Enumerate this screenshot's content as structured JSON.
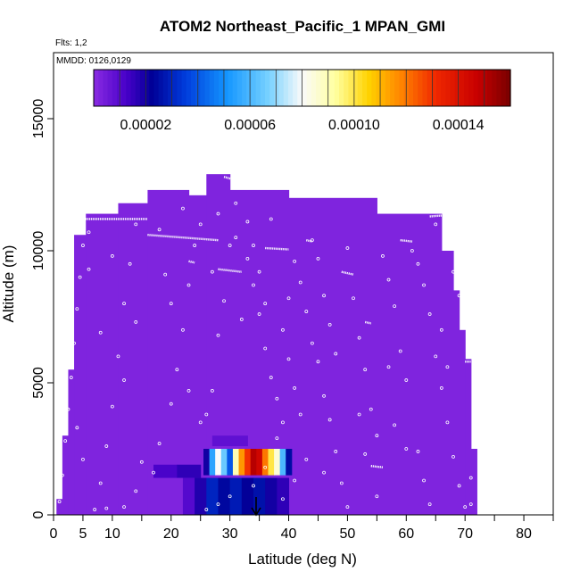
{
  "chart_data": {
    "type": "heatmap",
    "title": "ATOM2 Northeast_Pacific_1 MPAN_GMI",
    "flights_label": "Flts: 1,2",
    "date_label": "MMDD: 0126,0129",
    "xlabel": "Latitude (deg N)",
    "ylabel": "Altitude (m)",
    "xlim": [
      0,
      85
    ],
    "ylim": [
      0,
      17500
    ],
    "x_ticks": [
      0,
      5,
      10,
      20,
      30,
      40,
      50,
      60,
      70,
      80
    ],
    "y_ticks": [
      0,
      5000,
      10000,
      15000
    ],
    "colorbar": {
      "range": [
        0,
        0.00016
      ],
      "ticks": [
        "0.00002",
        "0.00006",
        "0.00010",
        "0.00014"
      ],
      "tick_values": [
        2e-05,
        6e-05,
        0.0001,
        0.00014
      ]
    },
    "background_value": 2e-06,
    "curtain_columns": [
      [
        0.5,
        1.5,
        0,
        600
      ],
      [
        1.5,
        2.5,
        0,
        3000
      ],
      [
        2.5,
        3.5,
        0,
        5500
      ],
      [
        3.5,
        5.5,
        0,
        10600
      ],
      [
        5.5,
        11,
        0,
        11400
      ],
      [
        11,
        16,
        0,
        11800
      ],
      [
        16,
        23,
        0,
        12300
      ],
      [
        23,
        26,
        0,
        12100
      ],
      [
        26,
        30,
        0,
        12900
      ],
      [
        30,
        40,
        0,
        12300
      ],
      [
        40,
        55,
        0,
        12000
      ],
      [
        55,
        66,
        0,
        11400
      ],
      [
        66,
        68,
        0,
        10000
      ],
      [
        68,
        69,
        0,
        8500
      ],
      [
        69,
        70,
        0,
        7000
      ],
      [
        70,
        71,
        0,
        5900
      ],
      [
        71,
        72,
        0,
        2500
      ]
    ],
    "enhanced_cells": [
      {
        "lat": [
          17,
          21
        ],
        "alt": [
          1400,
          1900
        ],
        "value": 1.2e-05
      },
      {
        "lat": [
          21,
          25
        ],
        "alt": [
          1400,
          1900
        ],
        "value": 1.6e-05
      },
      {
        "lat": [
          22,
          24
        ],
        "alt": [
          0,
          1400
        ],
        "value": 1e-05
      },
      {
        "lat": [
          24,
          26
        ],
        "alt": [
          0,
          1400
        ],
        "value": 1.8e-05
      },
      {
        "lat": [
          26,
          28
        ],
        "alt": [
          0,
          1400
        ],
        "value": 3e-05
      },
      {
        "lat": [
          28,
          30
        ],
        "alt": [
          0,
          1400
        ],
        "value": 2.4e-05
      },
      {
        "lat": [
          30,
          32
        ],
        "alt": [
          0,
          1400
        ],
        "value": 2.8e-05
      },
      {
        "lat": [
          32,
          34
        ],
        "alt": [
          0,
          1400
        ],
        "value": 2.2e-05
      },
      {
        "lat": [
          34,
          36
        ],
        "alt": [
          0,
          1400
        ],
        "value": 2.6e-05
      },
      {
        "lat": [
          36,
          38
        ],
        "alt": [
          0,
          1400
        ],
        "value": 2e-05
      },
      {
        "lat": [
          38,
          40
        ],
        "alt": [
          0,
          1400
        ],
        "value": 1.6e-05
      },
      {
        "lat": [
          27,
          33
        ],
        "alt": [
          2600,
          3000
        ],
        "value": 8e-06
      },
      {
        "lat": [
          25.5,
          26.5
        ],
        "alt": [
          1500,
          2500
        ],
        "value": 2e-05
      },
      {
        "lat": [
          26.5,
          27.5
        ],
        "alt": [
          1500,
          2500
        ],
        "value": 5.5e-05
      },
      {
        "lat": [
          27.5,
          28.5
        ],
        "alt": [
          1500,
          2500
        ],
        "value": 8e-05
      },
      {
        "lat": [
          28.5,
          29.5
        ],
        "alt": [
          1500,
          2500
        ],
        "value": 6.5e-05
      },
      {
        "lat": [
          29.5,
          30.5
        ],
        "alt": [
          1500,
          2500
        ],
        "value": 4e-05
      },
      {
        "lat": [
          30.5,
          31.5
        ],
        "alt": [
          1500,
          2500
        ],
        "value": 9e-05
      },
      {
        "lat": [
          31.5,
          32.5
        ],
        "alt": [
          1500,
          2500
        ],
        "value": 0.000115
      },
      {
        "lat": [
          32.5,
          33.5
        ],
        "alt": [
          1500,
          2500
        ],
        "value": 0.00013
      },
      {
        "lat": [
          33.5,
          34.5
        ],
        "alt": [
          1500,
          2500
        ],
        "value": 0.00015
      },
      {
        "lat": [
          34.5,
          35.5
        ],
        "alt": [
          1500,
          2500
        ],
        "value": 0.000145
      },
      {
        "lat": [
          35.5,
          36.5
        ],
        "alt": [
          1500,
          2500
        ],
        "value": 0.00012
      },
      {
        "lat": [
          36.5,
          37.5
        ],
        "alt": [
          1500,
          2500
        ],
        "value": 0.0001
      },
      {
        "lat": [
          37.5,
          38.5
        ],
        "alt": [
          1500,
          2500
        ],
        "value": 8.5e-05
      },
      {
        "lat": [
          38.5,
          39.5
        ],
        "alt": [
          1500,
          2500
        ],
        "value": 6e-05
      },
      {
        "lat": [
          39.5,
          40.5
        ],
        "alt": [
          1500,
          2500
        ],
        "value": 2.5e-05
      }
    ],
    "flight_track_segments": [
      [
        [
          3,
          11200
        ],
        [
          16,
          11200
        ]
      ],
      [
        [
          16,
          10600
        ],
        [
          28,
          10400
        ]
      ],
      [
        [
          29,
          12800
        ],
        [
          32,
          12600
        ]
      ],
      [
        [
          10,
          12200
        ],
        [
          12,
          12150
        ]
      ],
      [
        [
          17,
          12500
        ],
        [
          19,
          12500
        ]
      ],
      [
        [
          23,
          9600
        ],
        [
          24,
          9550
        ]
      ],
      [
        [
          28,
          9300
        ],
        [
          32,
          9200
        ]
      ],
      [
        [
          36,
          10100
        ],
        [
          40,
          10050
        ]
      ],
      [
        [
          43,
          10400
        ],
        [
          44,
          10350
        ]
      ],
      [
        [
          49,
          9200
        ],
        [
          51,
          9100
        ]
      ],
      [
        [
          53,
          7300
        ],
        [
          54,
          7250
        ]
      ],
      [
        [
          59,
          10400
        ],
        [
          61,
          10350
        ]
      ],
      [
        [
          64,
          11300
        ],
        [
          67,
          11350
        ]
      ],
      [
        [
          70,
          5800
        ],
        [
          71,
          5800
        ]
      ],
      [
        [
          54,
          1850
        ],
        [
          56,
          1800
        ]
      ]
    ],
    "observation_points": [
      [
        1,
        500
      ],
      [
        1.5,
        1500
      ],
      [
        2,
        2800
      ],
      [
        2.5,
        4000
      ],
      [
        3,
        5200
      ],
      [
        3.5,
        6500
      ],
      [
        4,
        7800
      ],
      [
        4.5,
        9000
      ],
      [
        5,
        10200
      ],
      [
        6,
        10700
      ],
      [
        7,
        200
      ],
      [
        8,
        1200
      ],
      [
        9,
        2600
      ],
      [
        10,
        4100
      ],
      [
        11,
        6000
      ],
      [
        12,
        8000
      ],
      [
        13,
        9500
      ],
      [
        14,
        11000
      ],
      [
        15,
        12100
      ],
      [
        16,
        12400
      ],
      [
        9,
        250
      ],
      [
        12,
        300
      ],
      [
        14,
        900
      ],
      [
        17,
        1600
      ],
      [
        18,
        2700
      ],
      [
        20,
        4200
      ],
      [
        21,
        5500
      ],
      [
        22,
        7000
      ],
      [
        23,
        8700
      ],
      [
        24,
        10200
      ],
      [
        25,
        11000
      ],
      [
        26,
        3800
      ],
      [
        27,
        4700
      ],
      [
        28,
        6800
      ],
      [
        29,
        8100
      ],
      [
        30,
        10200
      ],
      [
        31,
        11800
      ],
      [
        32,
        7400
      ],
      [
        33,
        9700
      ],
      [
        34,
        8700
      ],
      [
        35,
        7600
      ],
      [
        36,
        6300
      ],
      [
        37,
        5200
      ],
      [
        38,
        4400
      ],
      [
        39,
        3500
      ],
      [
        40,
        8200
      ],
      [
        41,
        9600
      ],
      [
        42,
        8800
      ],
      [
        43,
        7700
      ],
      [
        44,
        6500
      ],
      [
        45,
        5800
      ],
      [
        46,
        4500
      ],
      [
        47,
        3600
      ],
      [
        48,
        2400
      ],
      [
        49,
        1200
      ],
      [
        50,
        300
      ],
      [
        51,
        8200
      ],
      [
        52,
        6700
      ],
      [
        53,
        5500
      ],
      [
        54,
        4000
      ],
      [
        55,
        3000
      ],
      [
        56,
        9800
      ],
      [
        57,
        8900
      ],
      [
        58,
        7900
      ],
      [
        59,
        6200
      ],
      [
        60,
        5100
      ],
      [
        61,
        10000
      ],
      [
        62,
        9500
      ],
      [
        63,
        8700
      ],
      [
        64,
        7600
      ],
      [
        65,
        6000
      ],
      [
        66,
        4800
      ],
      [
        67,
        3500
      ],
      [
        68,
        2200
      ],
      [
        69,
        1100
      ],
      [
        70,
        300
      ],
      [
        71,
        1400
      ],
      [
        72,
        2600
      ],
      [
        73,
        5100
      ],
      [
        74,
        6200
      ],
      [
        2,
        8600
      ],
      [
        3,
        7200
      ],
      [
        4,
        3300
      ],
      [
        5,
        2100
      ],
      [
        6,
        9300
      ],
      [
        8,
        6900
      ],
      [
        10,
        9800
      ],
      [
        12,
        5100
      ],
      [
        14,
        7300
      ],
      [
        15,
        2000
      ],
      [
        18,
        10800
      ],
      [
        19,
        9100
      ],
      [
        20,
        8000
      ],
      [
        22,
        11600
      ],
      [
        23,
        4700
      ],
      [
        25,
        3500
      ],
      [
        27,
        9200
      ],
      [
        28,
        11400
      ],
      [
        31,
        10500
      ],
      [
        33,
        11100
      ],
      [
        34,
        10200
      ],
      [
        35,
        9200
      ],
      [
        36,
        8000
      ],
      [
        37,
        11200
      ],
      [
        39,
        7000
      ],
      [
        40,
        5900
      ],
      [
        41,
        4800
      ],
      [
        42,
        3800
      ],
      [
        44,
        10400
      ],
      [
        45,
        9700
      ],
      [
        46,
        8300
      ],
      [
        47,
        7200
      ],
      [
        48,
        6100
      ],
      [
        50,
        10100
      ],
      [
        52,
        3800
      ],
      [
        53,
        2300
      ],
      [
        55,
        700
      ],
      [
        57,
        5600
      ],
      [
        58,
        3400
      ],
      [
        60,
        2500
      ],
      [
        62,
        2400
      ],
      [
        63,
        1300
      ],
      [
        64,
        400
      ],
      [
        65,
        11000
      ],
      [
        66,
        7000
      ],
      [
        67,
        5600
      ],
      [
        68,
        9200
      ],
      [
        69,
        8300
      ],
      [
        70,
        7100
      ],
      [
        71,
        400
      ],
      [
        36,
        1800
      ],
      [
        38,
        2900
      ],
      [
        39,
        600
      ],
      [
        41,
        1300
      ],
      [
        43,
        2100
      ],
      [
        46,
        1600
      ],
      [
        26,
        200
      ],
      [
        28,
        400
      ],
      [
        30,
        700
      ],
      [
        34,
        1100
      ]
    ]
  }
}
